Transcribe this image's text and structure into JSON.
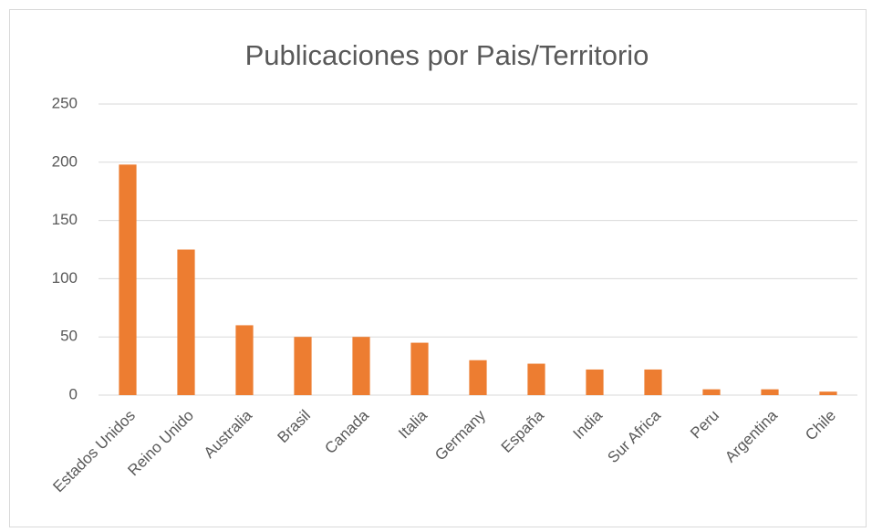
{
  "chart_data": {
    "type": "bar",
    "title": "Publicaciones por Pais/Territorio",
    "categories": [
      "Estados Unidos",
      "Reino Unido",
      "Australia",
      "Brasil",
      "Canada",
      "Italia",
      "Germany",
      "España",
      "India",
      "Sur Africa",
      "Peru",
      "Argentina",
      "Chile"
    ],
    "values": [
      198,
      125,
      60,
      50,
      50,
      45,
      30,
      27,
      22,
      22,
      5,
      5,
      3
    ],
    "color": "#ed7d31",
    "ylim": [
      0,
      250
    ],
    "yticks": [
      0,
      50,
      100,
      150,
      200,
      250
    ],
    "grid": true
  }
}
